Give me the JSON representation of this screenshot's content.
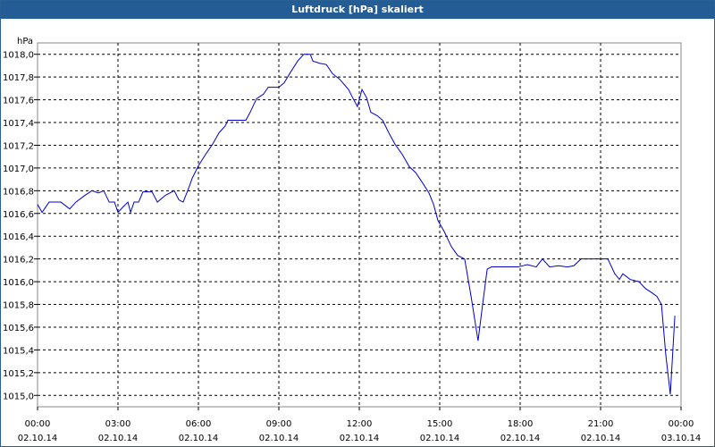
{
  "chart_data": {
    "type": "line",
    "title": "Luftdruck [hPa] skaliert",
    "y_label": "hPa",
    "grid": true,
    "line_color": "#0000cc",
    "xlim": [
      0,
      24
    ],
    "ylim": [
      1014.9,
      1018.1
    ],
    "xticks": [
      {
        "value": 0,
        "label": "00:00"
      },
      {
        "value": 3,
        "label": "03:00"
      },
      {
        "value": 6,
        "label": "06:00"
      },
      {
        "value": 9,
        "label": "09:00"
      },
      {
        "value": 12,
        "label": "12:00"
      },
      {
        "value": 15,
        "label": "15:00"
      },
      {
        "value": 18,
        "label": "18:00"
      },
      {
        "value": 21,
        "label": "21:00"
      },
      {
        "value": 24,
        "label": "00:00"
      }
    ],
    "xtick_dates": [
      "02.10.14",
      "02.10.14",
      "02.10.14",
      "02.10.14",
      "02.10.14",
      "02.10.14",
      "02.10.14",
      "02.10.14",
      "03.10.14"
    ],
    "yticks": [
      {
        "value": 1015,
        "label": "1015,0"
      },
      {
        "value": 1015.2,
        "label": "1015,2"
      },
      {
        "value": 1015.4,
        "label": "1015,4"
      },
      {
        "value": 1015.6,
        "label": "1015,6"
      },
      {
        "value": 1015.8,
        "label": "1015,8"
      },
      {
        "value": 1016,
        "label": "1016,0"
      },
      {
        "value": 1016.2,
        "label": "1016,2"
      },
      {
        "value": 1016.4,
        "label": "1016,4"
      },
      {
        "value": 1016.6,
        "label": "1016,6"
      },
      {
        "value": 1016.8,
        "label": "1016,8"
      },
      {
        "value": 1017,
        "label": "1017,0"
      },
      {
        "value": 1017.2,
        "label": "1017,2"
      },
      {
        "value": 1017.4,
        "label": "1017,4"
      },
      {
        "value": 1017.6,
        "label": "1017,6"
      },
      {
        "value": 1017.8,
        "label": "1017,8"
      },
      {
        "value": 1018,
        "label": "1018,0"
      }
    ],
    "x": [
      0,
      0.17,
      0.43,
      0.87,
      1.2,
      1.43,
      1.77,
      2.03,
      2.27,
      2.47,
      2.67,
      2.87,
      3,
      3.2,
      3.37,
      3.47,
      3.6,
      3.77,
      3.93,
      4.27,
      4.47,
      4.77,
      5.1,
      5.27,
      5.43,
      5.6,
      5.77,
      6,
      6.27,
      6.53,
      6.77,
      7,
      7.1,
      7.33,
      7.77,
      7.93,
      8.17,
      8.43,
      8.6,
      9,
      9.2,
      9.43,
      9.7,
      9.93,
      10.17,
      10.27,
      10.53,
      10.77,
      11,
      11.27,
      11.6,
      11.77,
      11.93,
      12.1,
      12.27,
      12.43,
      12.67,
      12.87,
      13.1,
      13.33,
      13.6,
      13.87,
      14.1,
      14.33,
      14.6,
      14.77,
      14.93,
      15.17,
      15.43,
      15.67,
      15.93,
      16.17,
      16.43,
      16.6,
      16.77,
      16.93,
      17.27,
      17.6,
      17.93,
      18.27,
      18.6,
      18.83,
      19.1,
      19.43,
      19.77,
      20,
      20.27,
      20.67,
      21.27,
      21.53,
      21.7,
      21.83,
      22.1,
      22.43,
      22.67,
      22.93,
      23.1,
      23.27,
      23.43,
      23.6,
      23.77
    ],
    "values": [
      1016.68,
      1016.61,
      1016.7,
      1016.7,
      1016.64,
      1016.7,
      1016.76,
      1016.8,
      1016.78,
      1016.8,
      1016.7,
      1016.7,
      1016.61,
      1016.66,
      1016.7,
      1016.61,
      1016.7,
      1016.7,
      1016.79,
      1016.79,
      1016.7,
      1016.76,
      1016.8,
      1016.72,
      1016.7,
      1016.8,
      1016.91,
      1017.02,
      1017.12,
      1017.21,
      1017.31,
      1017.37,
      1017.42,
      1017.42,
      1017.42,
      1017.49,
      1017.61,
      1017.65,
      1017.71,
      1017.71,
      1017.75,
      1017.84,
      1017.94,
      1018,
      1018,
      1017.94,
      1017.92,
      1017.91,
      1017.83,
      1017.78,
      1017.69,
      1017.61,
      1017.54,
      1017.69,
      1017.62,
      1017.49,
      1017.46,
      1017.42,
      1017.31,
      1017.21,
      1017.12,
      1017.01,
      1016.96,
      1016.88,
      1016.78,
      1016.68,
      1016.54,
      1016.44,
      1016.31,
      1016.23,
      1016.2,
      1015.87,
      1015.48,
      1015.8,
      1016.11,
      1016.13,
      1016.13,
      1016.13,
      1016.13,
      1016.15,
      1016.13,
      1016.2,
      1016.13,
      1016.14,
      1016.13,
      1016.14,
      1016.2,
      1016.2,
      1016.2,
      1016.07,
      1016.02,
      1016.07,
      1016.02,
      1016,
      1015.94,
      1015.9,
      1015.87,
      1015.8,
      1015.36,
      1015.01,
      1015.7
    ]
  }
}
